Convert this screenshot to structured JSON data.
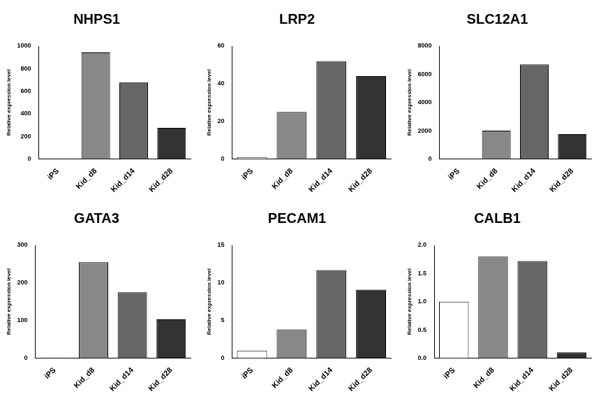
{
  "chart_data": [
    {
      "type": "bar",
      "title": "NHPS1",
      "y_label": "Relative expression level",
      "categories": [
        "iPS",
        "Kid_d8",
        "Kid_d14",
        "Kid_d28"
      ],
      "values": [
        1,
        945,
        680,
        275
      ],
      "colors": [
        "#ffffff",
        "#888888",
        "#666666",
        "#333333"
      ],
      "ylim": [
        0,
        1000
      ],
      "yticks": [
        0,
        200,
        400,
        600,
        800,
        1000
      ],
      "grid": false
    },
    {
      "type": "bar",
      "title": "LRP2",
      "y_label": "Relative expression level",
      "categories": [
        "iPS",
        "Kid_d8",
        "Kid_d14",
        "Kid_d28"
      ],
      "values": [
        1,
        25,
        52,
        44
      ],
      "colors": [
        "#ffffff",
        "#888888",
        "#666666",
        "#333333"
      ],
      "ylim": [
        0,
        60
      ],
      "yticks": [
        0,
        20,
        40,
        60
      ],
      "grid": false
    },
    {
      "type": "bar",
      "title": "SLC12A1",
      "y_label": "Relative expression level",
      "categories": [
        "iPS",
        "Kid_d8",
        "Kid_d14",
        "Kid_d28"
      ],
      "values": [
        1,
        2000,
        6700,
        1750
      ],
      "colors": [
        "#ffffff",
        "#888888",
        "#666666",
        "#333333"
      ],
      "ylim": [
        0,
        8000
      ],
      "yticks": [
        0,
        2000,
        4000,
        6000,
        8000
      ],
      "grid": false
    },
    {
      "type": "bar",
      "title": "GATA3",
      "y_label": "Relative expression level",
      "categories": [
        "iPS",
        "Kid_d8",
        "Kid_d14",
        "Kid_d28"
      ],
      "values": [
        1,
        255,
        175,
        103
      ],
      "colors": [
        "#ffffff",
        "#888888",
        "#666666",
        "#333333"
      ],
      "ylim": [
        0,
        300
      ],
      "yticks": [
        0,
        100,
        200,
        300
      ],
      "grid": false
    },
    {
      "type": "bar",
      "title": "PECAM1",
      "y_label": "Relative expression level",
      "categories": [
        "iPS",
        "Kid_d8",
        "Kid_d14",
        "Kid_d28"
      ],
      "values": [
        1,
        3.8,
        11.7,
        9.1
      ],
      "colors": [
        "#ffffff",
        "#888888",
        "#666666",
        "#333333"
      ],
      "ylim": [
        0,
        15
      ],
      "yticks": [
        0,
        5,
        10,
        15
      ],
      "grid": false
    },
    {
      "type": "bar",
      "title": "CALB1",
      "y_label": "Relative expression level",
      "categories": [
        "iPS",
        "Kid_d8",
        "Kid_d14",
        "Kid_d28"
      ],
      "values": [
        1.0,
        1.8,
        1.72,
        0.1
      ],
      "colors": [
        "#ffffff",
        "#888888",
        "#666666",
        "#333333"
      ],
      "ylim": [
        0,
        2
      ],
      "yticks": [
        {
          "value": 0,
          "label": "0.0"
        },
        {
          "value": 0.5,
          "label": "0.5"
        },
        {
          "value": 1,
          "label": "1.0"
        },
        {
          "value": 1.5,
          "label": "1.5"
        },
        {
          "value": 2,
          "label": "2.0"
        }
      ],
      "grid": false
    }
  ]
}
